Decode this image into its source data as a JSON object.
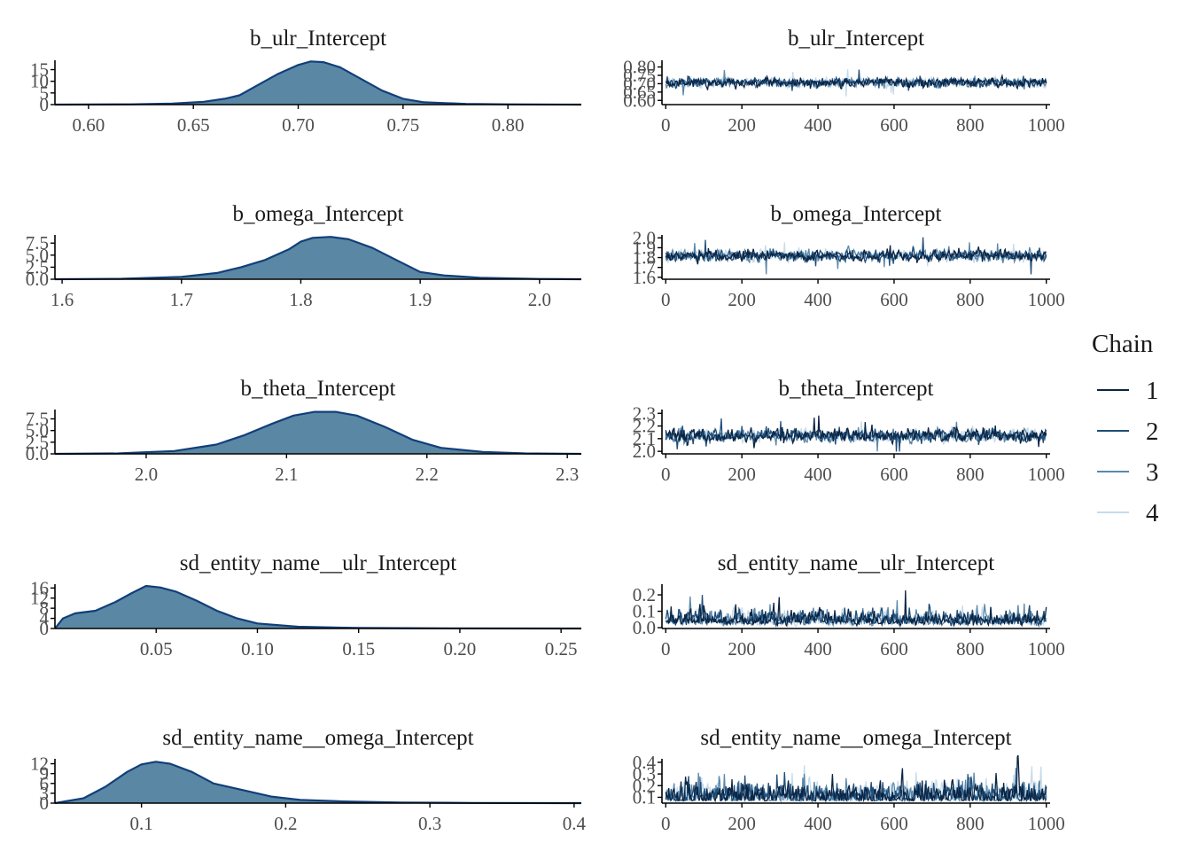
{
  "legend": {
    "title": "Chain",
    "entries": [
      {
        "label": "1",
        "color": "#0b2545"
      },
      {
        "label": "2",
        "color": "#1f4e79"
      },
      {
        "label": "3",
        "color": "#5b88aa"
      },
      {
        "label": "4",
        "color": "#c6dbea"
      }
    ]
  },
  "chart_data": [
    {
      "type": "area",
      "title": "b_ulr_Intercept",
      "xlim": [
        0.584,
        0.835
      ],
      "ylim": [
        0,
        19
      ],
      "xticks": [
        "0.60",
        "0.65",
        "0.70",
        "0.75",
        "0.80"
      ],
      "xtick_values": [
        0.6,
        0.65,
        0.7,
        0.75,
        0.8
      ],
      "yticks": [
        "0",
        "5",
        "10",
        "15"
      ],
      "ytick_values": [
        0,
        5,
        10,
        15
      ],
      "x": [
        0.584,
        0.62,
        0.64,
        0.655,
        0.665,
        0.672,
        0.68,
        0.69,
        0.7,
        0.706,
        0.712,
        0.72,
        0.73,
        0.74,
        0.75,
        0.76,
        0.78,
        0.8,
        0.835
      ],
      "y": [
        0,
        0.1,
        0.4,
        1.2,
        2.5,
        4.0,
        8.0,
        13.0,
        17.0,
        18.5,
        18.2,
        16.0,
        11.0,
        6.0,
        2.5,
        1.0,
        0.3,
        0.1,
        0
      ]
    },
    {
      "type": "line",
      "title": "b_ulr_Intercept",
      "xlim": [
        -10,
        1010
      ],
      "ylim": [
        0.575,
        0.84
      ],
      "xticks": [
        "0",
        "200",
        "400",
        "600",
        "800",
        "1000"
      ],
      "xtick_values": [
        0,
        200,
        400,
        600,
        800,
        1000
      ],
      "yticks": [
        "0.60",
        "0.65",
        "0.70",
        "0.75",
        "0.80"
      ],
      "ytick_values": [
        0.6,
        0.65,
        0.7,
        0.75,
        0.8
      ],
      "chain_mean": 0.706,
      "chain_sd": 0.022,
      "skew": 0,
      "iterations": 1000
    },
    {
      "type": "area",
      "title": "b_omega_Intercept",
      "xlim": [
        1.594,
        2.035
      ],
      "ylim": [
        0,
        9.2
      ],
      "xticks": [
        "1.6",
        "1.7",
        "1.8",
        "1.9",
        "2.0"
      ],
      "xtick_values": [
        1.6,
        1.7,
        1.8,
        1.9,
        2.0
      ],
      "yticks": [
        "0.0",
        "2.5",
        "5.0",
        "7.5"
      ],
      "ytick_values": [
        0,
        2.5,
        5.0,
        7.5
      ],
      "x": [
        1.594,
        1.65,
        1.7,
        1.73,
        1.75,
        1.77,
        1.79,
        1.8,
        1.81,
        1.825,
        1.84,
        1.86,
        1.88,
        1.9,
        1.92,
        1.95,
        2.0,
        2.035
      ],
      "y": [
        0,
        0.1,
        0.5,
        1.3,
        2.5,
        4.0,
        6.2,
        7.8,
        8.6,
        8.8,
        8.3,
        6.5,
        4.0,
        1.5,
        0.8,
        0.3,
        0.05,
        0
      ]
    },
    {
      "type": "line",
      "title": "b_omega_Intercept",
      "xlim": [
        -10,
        1010
      ],
      "ylim": [
        1.58,
        2.03
      ],
      "xticks": [
        "0",
        "200",
        "400",
        "600",
        "800",
        "1000"
      ],
      "xtick_values": [
        0,
        200,
        400,
        600,
        800,
        1000
      ],
      "yticks": [
        "1.6",
        "1.7",
        "1.8",
        "1.9",
        "2.0"
      ],
      "ytick_values": [
        1.6,
        1.7,
        1.8,
        1.9,
        2.0
      ],
      "chain_mean": 1.82,
      "chain_sd": 0.045,
      "skew": 0,
      "iterations": 1000
    },
    {
      "type": "area",
      "title": "b_theta_Intercept",
      "xlim": [
        1.935,
        2.31
      ],
      "ylim": [
        0,
        9.5
      ],
      "xticks": [
        "2.0",
        "2.1",
        "2.2",
        "2.3"
      ],
      "xtick_values": [
        2.0,
        2.1,
        2.2,
        2.3
      ],
      "yticks": [
        "0.0",
        "2.5",
        "5.0",
        "7.5"
      ],
      "ytick_values": [
        0,
        2.5,
        5.0,
        7.5
      ],
      "x": [
        1.935,
        1.98,
        2.02,
        2.05,
        2.07,
        2.09,
        2.105,
        2.12,
        2.135,
        2.15,
        2.17,
        2.19,
        2.21,
        2.24,
        2.27,
        2.31
      ],
      "y": [
        0,
        0.1,
        0.6,
        2.0,
        4.0,
        6.5,
        8.2,
        9.0,
        9.0,
        8.2,
        5.8,
        3.0,
        1.3,
        0.4,
        0.1,
        0
      ]
    },
    {
      "type": "line",
      "title": "b_theta_Intercept",
      "xlim": [
        -10,
        1010
      ],
      "ylim": [
        1.98,
        2.33
      ],
      "xticks": [
        "0",
        "200",
        "400",
        "600",
        "800",
        "1000"
      ],
      "xtick_values": [
        0,
        200,
        400,
        600,
        800,
        1000
      ],
      "yticks": [
        "2.0",
        "2.1",
        "2.2",
        "2.3"
      ],
      "ytick_values": [
        2.0,
        2.1,
        2.2,
        2.3
      ],
      "chain_mean": 2.125,
      "chain_sd": 0.042,
      "skew": 0,
      "iterations": 1000
    },
    {
      "type": "area",
      "title": "sd_entity_name__ulr_Intercept",
      "xlim": [
        0.0,
        0.26
      ],
      "ylim": [
        0,
        17.5
      ],
      "xticks": [
        "0.05",
        "0.10",
        "0.15",
        "0.20",
        "0.25"
      ],
      "xtick_values": [
        0.05,
        0.1,
        0.15,
        0.2,
        0.25
      ],
      "yticks": [
        "0",
        "4",
        "8",
        "12",
        "16"
      ],
      "ytick_values": [
        0,
        4,
        8,
        12,
        16
      ],
      "x": [
        0.0,
        0.004,
        0.01,
        0.02,
        0.03,
        0.038,
        0.045,
        0.052,
        0.06,
        0.07,
        0.08,
        0.09,
        0.1,
        0.12,
        0.15,
        0.2,
        0.26
      ],
      "y": [
        0,
        4.0,
        6.0,
        7.0,
        10.5,
        14.0,
        16.8,
        16.2,
        14.5,
        11.0,
        7.0,
        4.0,
        2.0,
        0.7,
        0.2,
        0.05,
        0
      ]
    },
    {
      "type": "line",
      "title": "sd_entity_name__ulr_Intercept",
      "xlim": [
        -10,
        1010
      ],
      "ylim": [
        -0.005,
        0.265
      ],
      "xticks": [
        "0",
        "200",
        "400",
        "600",
        "800",
        "1000"
      ],
      "xtick_values": [
        0,
        200,
        400,
        600,
        800,
        1000
      ],
      "yticks": [
        "0.0",
        "0.1",
        "0.2"
      ],
      "ytick_values": [
        0.0,
        0.1,
        0.2
      ],
      "chain_mean": 0.055,
      "chain_sd": 0.028,
      "skew": 1,
      "iterations": 1000
    },
    {
      "type": "area",
      "title": "sd_entity_name__omega_Intercept",
      "xlim": [
        0.04,
        0.405
      ],
      "ylim": [
        0,
        13.5
      ],
      "xticks": [
        "0.1",
        "0.2",
        "0.3",
        "0.4"
      ],
      "xtick_values": [
        0.1,
        0.2,
        0.3,
        0.4
      ],
      "yticks": [
        "0",
        "3",
        "6",
        "9",
        "12"
      ],
      "ytick_values": [
        0,
        3,
        6,
        9,
        12
      ],
      "x": [
        0.04,
        0.06,
        0.075,
        0.09,
        0.1,
        0.11,
        0.12,
        0.135,
        0.15,
        0.17,
        0.19,
        0.21,
        0.24,
        0.28,
        0.33,
        0.405
      ],
      "y": [
        0,
        1.5,
        5.0,
        9.5,
        11.8,
        12.6,
        12.0,
        9.5,
        6.0,
        4.0,
        2.0,
        1.0,
        0.5,
        0.2,
        0.05,
        0
      ]
    },
    {
      "type": "line",
      "title": "sd_entity_name__omega_Intercept",
      "xlim": [
        -10,
        1010
      ],
      "ylim": [
        0.05,
        0.43
      ],
      "xticks": [
        "0",
        "200",
        "400",
        "600",
        "800",
        "1000"
      ],
      "xtick_values": [
        0,
        200,
        400,
        600,
        800,
        1000
      ],
      "yticks": [
        "0.1",
        "0.2",
        "0.3",
        "0.4"
      ],
      "ytick_values": [
        0.1,
        0.2,
        0.3,
        0.4
      ],
      "chain_mean": 0.13,
      "chain_sd": 0.04,
      "skew": 1,
      "iterations": 1000
    }
  ]
}
